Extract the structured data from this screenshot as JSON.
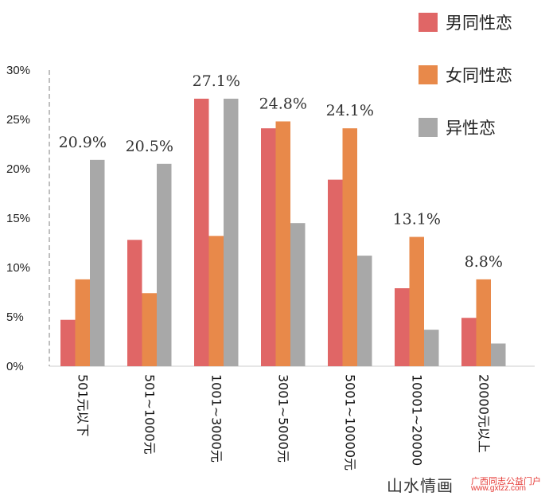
{
  "chart_data": {
    "type": "bar",
    "categories": [
      "501元以下",
      "501~1000元",
      "1001~3000元",
      "3001~5000元",
      "5001~10000元",
      "10001~20000",
      "20000元以上"
    ],
    "series": [
      {
        "name": "男同性恋",
        "color": "#e06666",
        "values": [
          4.7,
          12.8,
          27.1,
          24.1,
          18.9,
          7.9,
          4.9
        ]
      },
      {
        "name": "女同性恋",
        "color": "#e8894a",
        "values": [
          8.8,
          7.4,
          13.2,
          24.8,
          24.1,
          13.1,
          8.8
        ]
      },
      {
        "name": "异性恋",
        "color": "#a8a8a8",
        "values": [
          20.9,
          20.5,
          27.1,
          14.5,
          11.2,
          3.7,
          2.3
        ]
      }
    ],
    "data_labels": [
      "20.9%",
      "20.5%",
      "27.1%",
      "24.8%",
      "24.1%",
      "13.1%",
      "8.8%"
    ],
    "yticks": [
      "0%",
      "5%",
      "10%",
      "15%",
      "20%",
      "25%",
      "30%"
    ],
    "ylim": [
      0,
      30
    ],
    "legend_position": "top-right",
    "grid": false
  },
  "watermark": {
    "main": "山水情画",
    "sub1": "广西同志公益门户",
    "sub2": "www.gxtzz.com"
  }
}
